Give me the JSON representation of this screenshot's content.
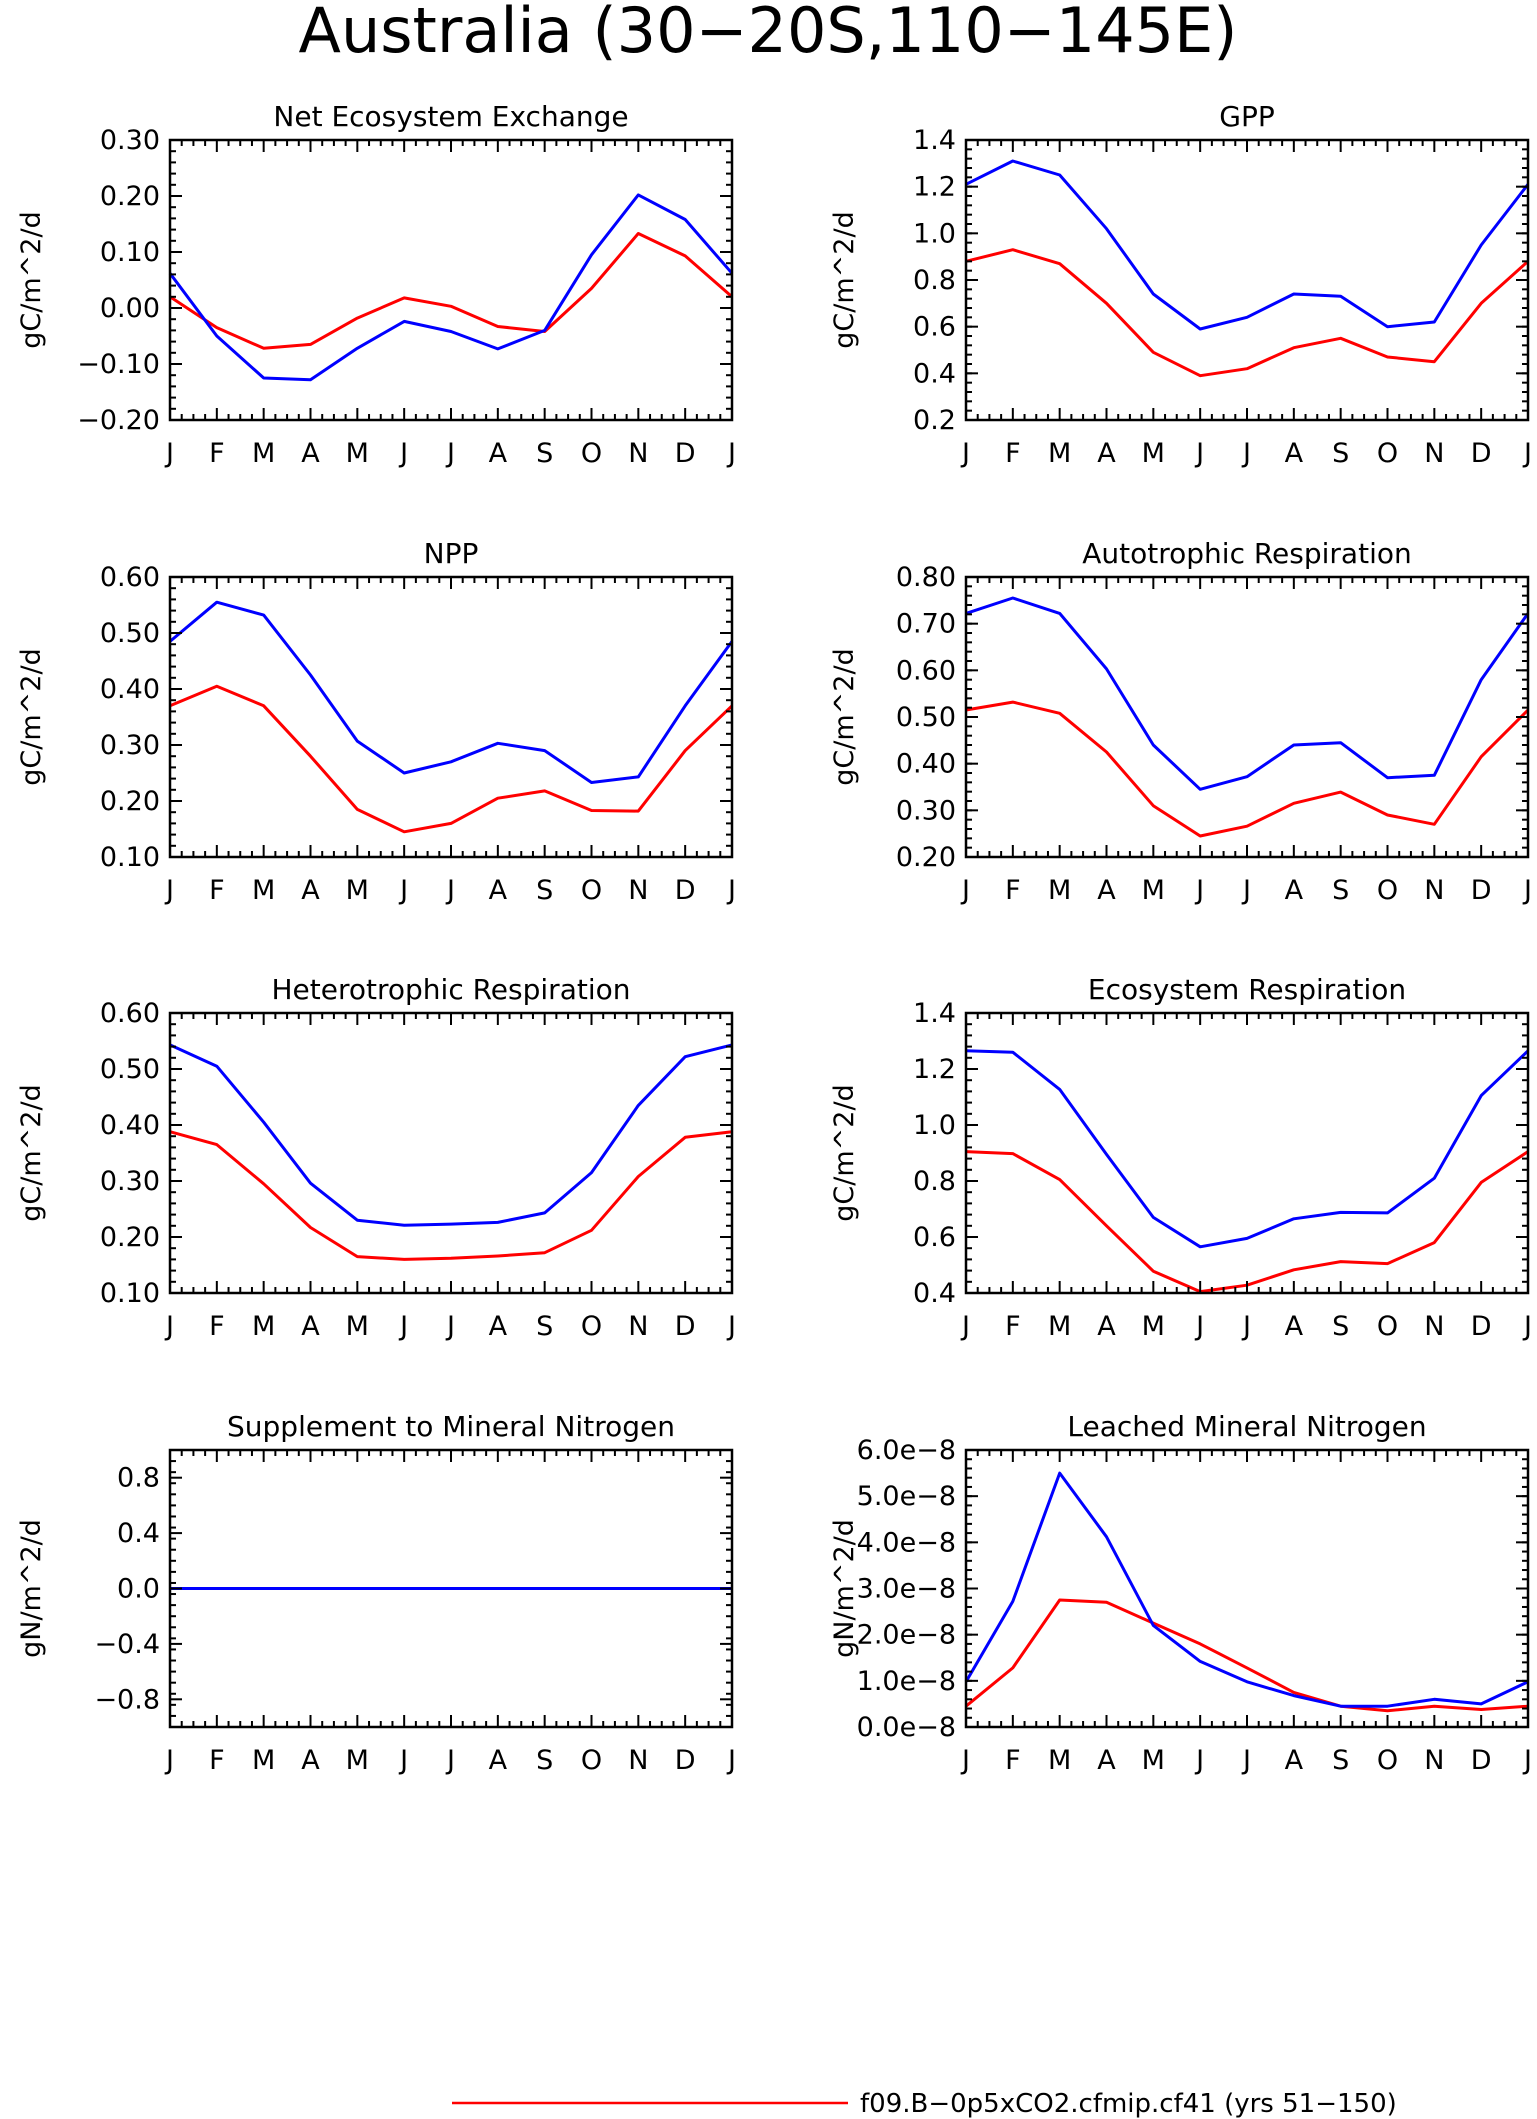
{
  "figure_title": "Australia (30−20S,110−145E)",
  "colors": {
    "series_red": "#ff0000",
    "series_blue": "#0000ff",
    "axes": "#000000"
  },
  "legend": [
    {
      "color": "#ff0000",
      "label": "f09.B−0p5xCO2.cfmip.cf41 (yrs 51−150)"
    }
  ],
  "chart_data": [
    {
      "type": "line",
      "title": "Net Ecosystem Exchange",
      "ylabel": "gC/m^2/d",
      "categories": [
        "J",
        "F",
        "M",
        "A",
        "M",
        "J",
        "J",
        "A",
        "S",
        "O",
        "N",
        "D",
        "J"
      ],
      "ylim": [
        -0.2,
        0.3
      ],
      "yticks": [
        -0.2,
        -0.1,
        0.0,
        0.1,
        0.2,
        0.3
      ],
      "yticklabels": [
        "−0.20",
        "−0.10",
        "0.00",
        "0.10",
        "0.20",
        "0.30"
      ],
      "series": [
        {
          "color": "#ff0000",
          "values": [
            0.02,
            -0.035,
            -0.072,
            -0.065,
            -0.018,
            0.018,
            0.003,
            -0.033,
            -0.042,
            0.035,
            0.133,
            0.093,
            0.02
          ]
        },
        {
          "color": "#0000ff",
          "values": [
            0.062,
            -0.05,
            -0.125,
            -0.128,
            -0.072,
            -0.024,
            -0.042,
            -0.073,
            -0.04,
            0.095,
            0.202,
            0.158,
            0.062
          ]
        }
      ]
    },
    {
      "type": "line",
      "title": "GPP",
      "ylabel": "gC/m^2/d",
      "categories": [
        "J",
        "F",
        "M",
        "A",
        "M",
        "J",
        "J",
        "A",
        "S",
        "O",
        "N",
        "D",
        "J"
      ],
      "ylim": [
        0.2,
        1.4
      ],
      "yticks": [
        0.2,
        0.4,
        0.6,
        0.8,
        1.0,
        1.2,
        1.4
      ],
      "yticklabels": [
        "0.2",
        "0.4",
        "0.6",
        "0.8",
        "1.0",
        "1.2",
        "1.4"
      ],
      "series": [
        {
          "color": "#ff0000",
          "values": [
            0.88,
            0.93,
            0.87,
            0.7,
            0.49,
            0.39,
            0.42,
            0.51,
            0.55,
            0.47,
            0.45,
            0.7,
            0.88
          ]
        },
        {
          "color": "#0000ff",
          "values": [
            1.21,
            1.31,
            1.25,
            1.02,
            0.74,
            0.59,
            0.64,
            0.74,
            0.73,
            0.6,
            0.62,
            0.95,
            1.21
          ]
        }
      ]
    },
    {
      "type": "line",
      "title": "NPP",
      "ylabel": "gC/m^2/d",
      "categories": [
        "J",
        "F",
        "M",
        "A",
        "M",
        "J",
        "J",
        "A",
        "S",
        "O",
        "N",
        "D",
        "J"
      ],
      "ylim": [
        0.1,
        0.6
      ],
      "yticks": [
        0.1,
        0.2,
        0.3,
        0.4,
        0.5,
        0.6
      ],
      "yticklabels": [
        "0.10",
        "0.20",
        "0.30",
        "0.40",
        "0.50",
        "0.60"
      ],
      "series": [
        {
          "color": "#ff0000",
          "values": [
            0.37,
            0.405,
            0.37,
            0.28,
            0.185,
            0.145,
            0.16,
            0.205,
            0.218,
            0.183,
            0.182,
            0.29,
            0.37
          ]
        },
        {
          "color": "#0000ff",
          "values": [
            0.485,
            0.555,
            0.532,
            0.425,
            0.307,
            0.25,
            0.27,
            0.303,
            0.29,
            0.233,
            0.243,
            0.37,
            0.485
          ]
        }
      ]
    },
    {
      "type": "line",
      "title": "Autotrophic Respiration",
      "ylabel": "gC/m^2/d",
      "categories": [
        "J",
        "F",
        "M",
        "A",
        "M",
        "J",
        "J",
        "A",
        "S",
        "O",
        "N",
        "D",
        "J"
      ],
      "ylim": [
        0.2,
        0.8
      ],
      "yticks": [
        0.2,
        0.3,
        0.4,
        0.5,
        0.6,
        0.7,
        0.8
      ],
      "yticklabels": [
        "0.20",
        "0.30",
        "0.40",
        "0.50",
        "0.60",
        "0.70",
        "0.80"
      ],
      "series": [
        {
          "color": "#ff0000",
          "values": [
            0.515,
            0.532,
            0.508,
            0.425,
            0.31,
            0.245,
            0.266,
            0.315,
            0.339,
            0.29,
            0.27,
            0.415,
            0.515
          ]
        },
        {
          "color": "#0000ff",
          "values": [
            0.722,
            0.755,
            0.722,
            0.603,
            0.44,
            0.345,
            0.372,
            0.44,
            0.445,
            0.37,
            0.375,
            0.58,
            0.722
          ]
        }
      ]
    },
    {
      "type": "line",
      "title": "Heterotrophic Respiration",
      "ylabel": "gC/m^2/d",
      "categories": [
        "J",
        "F",
        "M",
        "A",
        "M",
        "J",
        "J",
        "A",
        "S",
        "O",
        "N",
        "D",
        "J"
      ],
      "ylim": [
        0.1,
        0.6
      ],
      "yticks": [
        0.1,
        0.2,
        0.3,
        0.4,
        0.5,
        0.6
      ],
      "yticklabels": [
        "0.10",
        "0.20",
        "0.30",
        "0.40",
        "0.50",
        "0.60"
      ],
      "series": [
        {
          "color": "#ff0000",
          "values": [
            0.388,
            0.365,
            0.295,
            0.217,
            0.165,
            0.16,
            0.162,
            0.166,
            0.172,
            0.212,
            0.308,
            0.378,
            0.388
          ]
        },
        {
          "color": "#0000ff",
          "values": [
            0.543,
            0.505,
            0.405,
            0.296,
            0.23,
            0.221,
            0.223,
            0.226,
            0.243,
            0.315,
            0.435,
            0.522,
            0.543
          ]
        }
      ]
    },
    {
      "type": "line",
      "title": "Ecosystem Respiration",
      "ylabel": "gC/m^2/d",
      "categories": [
        "J",
        "F",
        "M",
        "A",
        "M",
        "J",
        "J",
        "A",
        "S",
        "O",
        "N",
        "D",
        "J"
      ],
      "ylim": [
        0.4,
        1.4
      ],
      "yticks": [
        0.4,
        0.6,
        0.8,
        1.0,
        1.2,
        1.4
      ],
      "yticklabels": [
        "0.4",
        "0.6",
        "0.8",
        "1.0",
        "1.2",
        "1.4"
      ],
      "series": [
        {
          "color": "#ff0000",
          "values": [
            0.905,
            0.898,
            0.805,
            0.64,
            0.478,
            0.405,
            0.428,
            0.483,
            0.512,
            0.505,
            0.58,
            0.795,
            0.905
          ]
        },
        {
          "color": "#0000ff",
          "values": [
            1.265,
            1.26,
            1.127,
            0.895,
            0.67,
            0.565,
            0.595,
            0.665,
            0.688,
            0.686,
            0.81,
            1.105,
            1.265
          ]
        }
      ]
    },
    {
      "type": "line",
      "title": "Supplement to Mineral Nitrogen",
      "ylabel": "gN/m^2/d",
      "categories": [
        "J",
        "F",
        "M",
        "A",
        "M",
        "J",
        "J",
        "A",
        "S",
        "O",
        "N",
        "D",
        "J"
      ],
      "ylim": [
        -1.0,
        1.0
      ],
      "yticks": [
        -0.8,
        -0.4,
        0.0,
        0.4,
        0.8
      ],
      "yticklabels": [
        "−0.8",
        "−0.4",
        "0.0",
        "0.4",
        "0.8"
      ],
      "series": [
        {
          "color": "#ff0000",
          "values": [
            0,
            0,
            0,
            0,
            0,
            0,
            0,
            0,
            0,
            0,
            0,
            0,
            0
          ]
        },
        {
          "color": "#0000ff",
          "values": [
            0,
            0,
            0,
            0,
            0,
            0,
            0,
            0,
            0,
            0,
            0,
            0,
            0
          ]
        }
      ]
    },
    {
      "type": "line",
      "title": "Leached Mineral Nitrogen",
      "ylabel": "gN/m^2/d",
      "categories": [
        "J",
        "F",
        "M",
        "A",
        "M",
        "J",
        "J",
        "A",
        "S",
        "O",
        "N",
        "D",
        "J"
      ],
      "ylim": [
        0.0,
        6e-08
      ],
      "yticks": [
        0.0,
        1e-08,
        2e-08,
        3e-08,
        4e-08,
        5e-08,
        6e-08
      ],
      "yticklabels": [
        "0.0e−8",
        "1.0e−8",
        "2.0e−8",
        "3.0e−8",
        "4.0e−8",
        "5.0e−8",
        "6.0e−8"
      ],
      "series": [
        {
          "color": "#ff0000",
          "values": [
            4.5e-09,
            1.28e-08,
            2.75e-08,
            2.7e-08,
            2.25e-08,
            1.8e-08,
            1.28e-08,
            7.5e-09,
            4.5e-09,
            3.5e-09,
            4.5e-09,
            3.8e-09,
            4.5e-09
          ]
        },
        {
          "color": "#0000ff",
          "values": [
            9.8e-09,
            2.72e-08,
            5.5e-08,
            4.12e-08,
            2.2e-08,
            1.42e-08,
            9.8e-09,
            6.8e-09,
            4.5e-09,
            4.5e-09,
            6e-09,
            5e-09,
            9.8e-09
          ]
        }
      ]
    }
  ]
}
